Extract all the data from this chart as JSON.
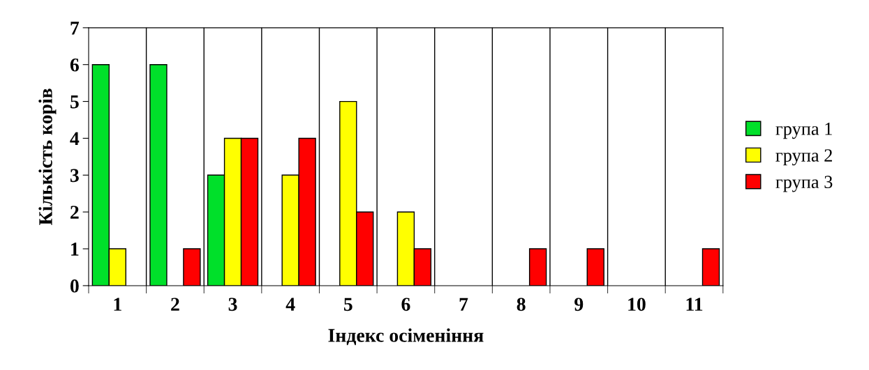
{
  "chart_data": {
    "type": "bar",
    "xlabel": "Індекс осіменіння",
    "ylabel": "Кількість корів",
    "categories": [
      "1",
      "2",
      "3",
      "4",
      "5",
      "6",
      "7",
      "8",
      "9",
      "10",
      "11"
    ],
    "series": [
      {
        "name": "група 1",
        "color": "#00e02a",
        "values": [
          6,
          6,
          3,
          0,
          0,
          0,
          0,
          0,
          0,
          0,
          0
        ]
      },
      {
        "name": "група 2",
        "color": "#ffff00",
        "values": [
          1,
          0,
          4,
          3,
          5,
          2,
          0,
          0,
          0,
          0,
          0
        ]
      },
      {
        "name": "група 3",
        "color": "#ff0000",
        "values": [
          0,
          1,
          4,
          4,
          2,
          1,
          0,
          1,
          1,
          0,
          1
        ]
      }
    ],
    "ylim": [
      0,
      7
    ],
    "yticks": [
      0,
      1,
      2,
      3,
      4,
      5,
      6,
      7
    ],
    "grid": "x",
    "legend": "right"
  }
}
